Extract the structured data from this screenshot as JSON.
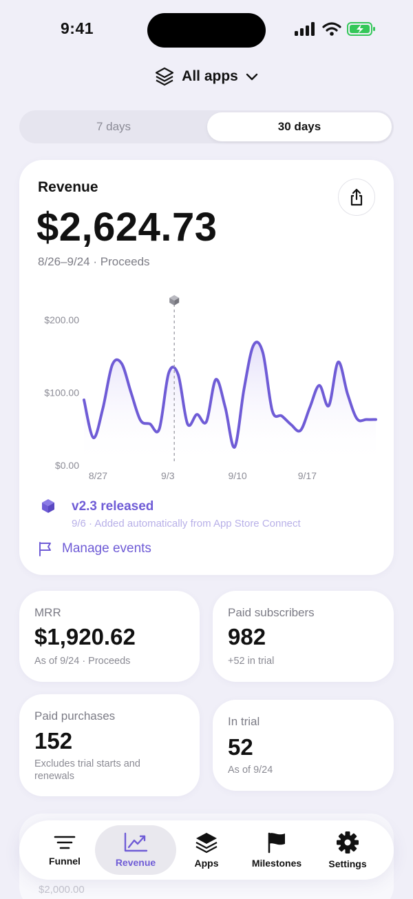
{
  "status": {
    "time": "9:41"
  },
  "picker": {
    "label": "All apps"
  },
  "range": {
    "option_7": "7 days",
    "option_30": "30 days",
    "selected": "30 days"
  },
  "revenue": {
    "title": "Revenue",
    "amount": "$2,624.73",
    "subtitle": "8/26–9/24 · Proceeds"
  },
  "chart_data": {
    "type": "area",
    "y_ticks": [
      "$200.00",
      "$100.00",
      "$0.00"
    ],
    "x_ticks": [
      "8/27",
      "9/3",
      "9/10",
      "9/17"
    ],
    "ylim": [
      0,
      200
    ],
    "series": [
      {
        "values": [
          90,
          38,
          78,
          138,
          140,
          100,
          62,
          57,
          50,
          127,
          125,
          57,
          70,
          60,
          118,
          80,
          25,
          105,
          165,
          155,
          75,
          68,
          56,
          48,
          80,
          110,
          82,
          142,
          98,
          64,
          63,
          63
        ]
      }
    ],
    "event_marker": {
      "date": "9/6"
    },
    "colors": {
      "line": "#6f5cd6",
      "fill_top": "#e7e3fb"
    }
  },
  "event": {
    "title": "v2.3 released",
    "subtitle": "9/6 · Added automatically from App Store Connect"
  },
  "manage_events": {
    "label": "Manage events"
  },
  "stats": [
    {
      "label": "MRR",
      "value": "$1,920.62",
      "note": "As of 9/24 · Proceeds"
    },
    {
      "label": "Paid subscribers",
      "value": "982",
      "note": "+52 in trial"
    },
    {
      "label": "Paid purchases",
      "value": "152",
      "note": "Excludes trial starts and renewals"
    },
    {
      "label": "In trial",
      "value": "52",
      "note": "As of 9/24"
    }
  ],
  "faded": {
    "label": "$2,000.00"
  },
  "tabs": [
    {
      "label": "Funnel",
      "icon": "lines-icon"
    },
    {
      "label": "Revenue",
      "icon": "trend-icon"
    },
    {
      "label": "Apps",
      "icon": "stack-icon"
    },
    {
      "label": "Milestones",
      "icon": "flag-icon"
    },
    {
      "label": "Settings",
      "icon": "gear-icon"
    }
  ],
  "active_tab": "Revenue",
  "colors": {
    "accent": "#6f5cd6",
    "background": "#f0eff8"
  }
}
